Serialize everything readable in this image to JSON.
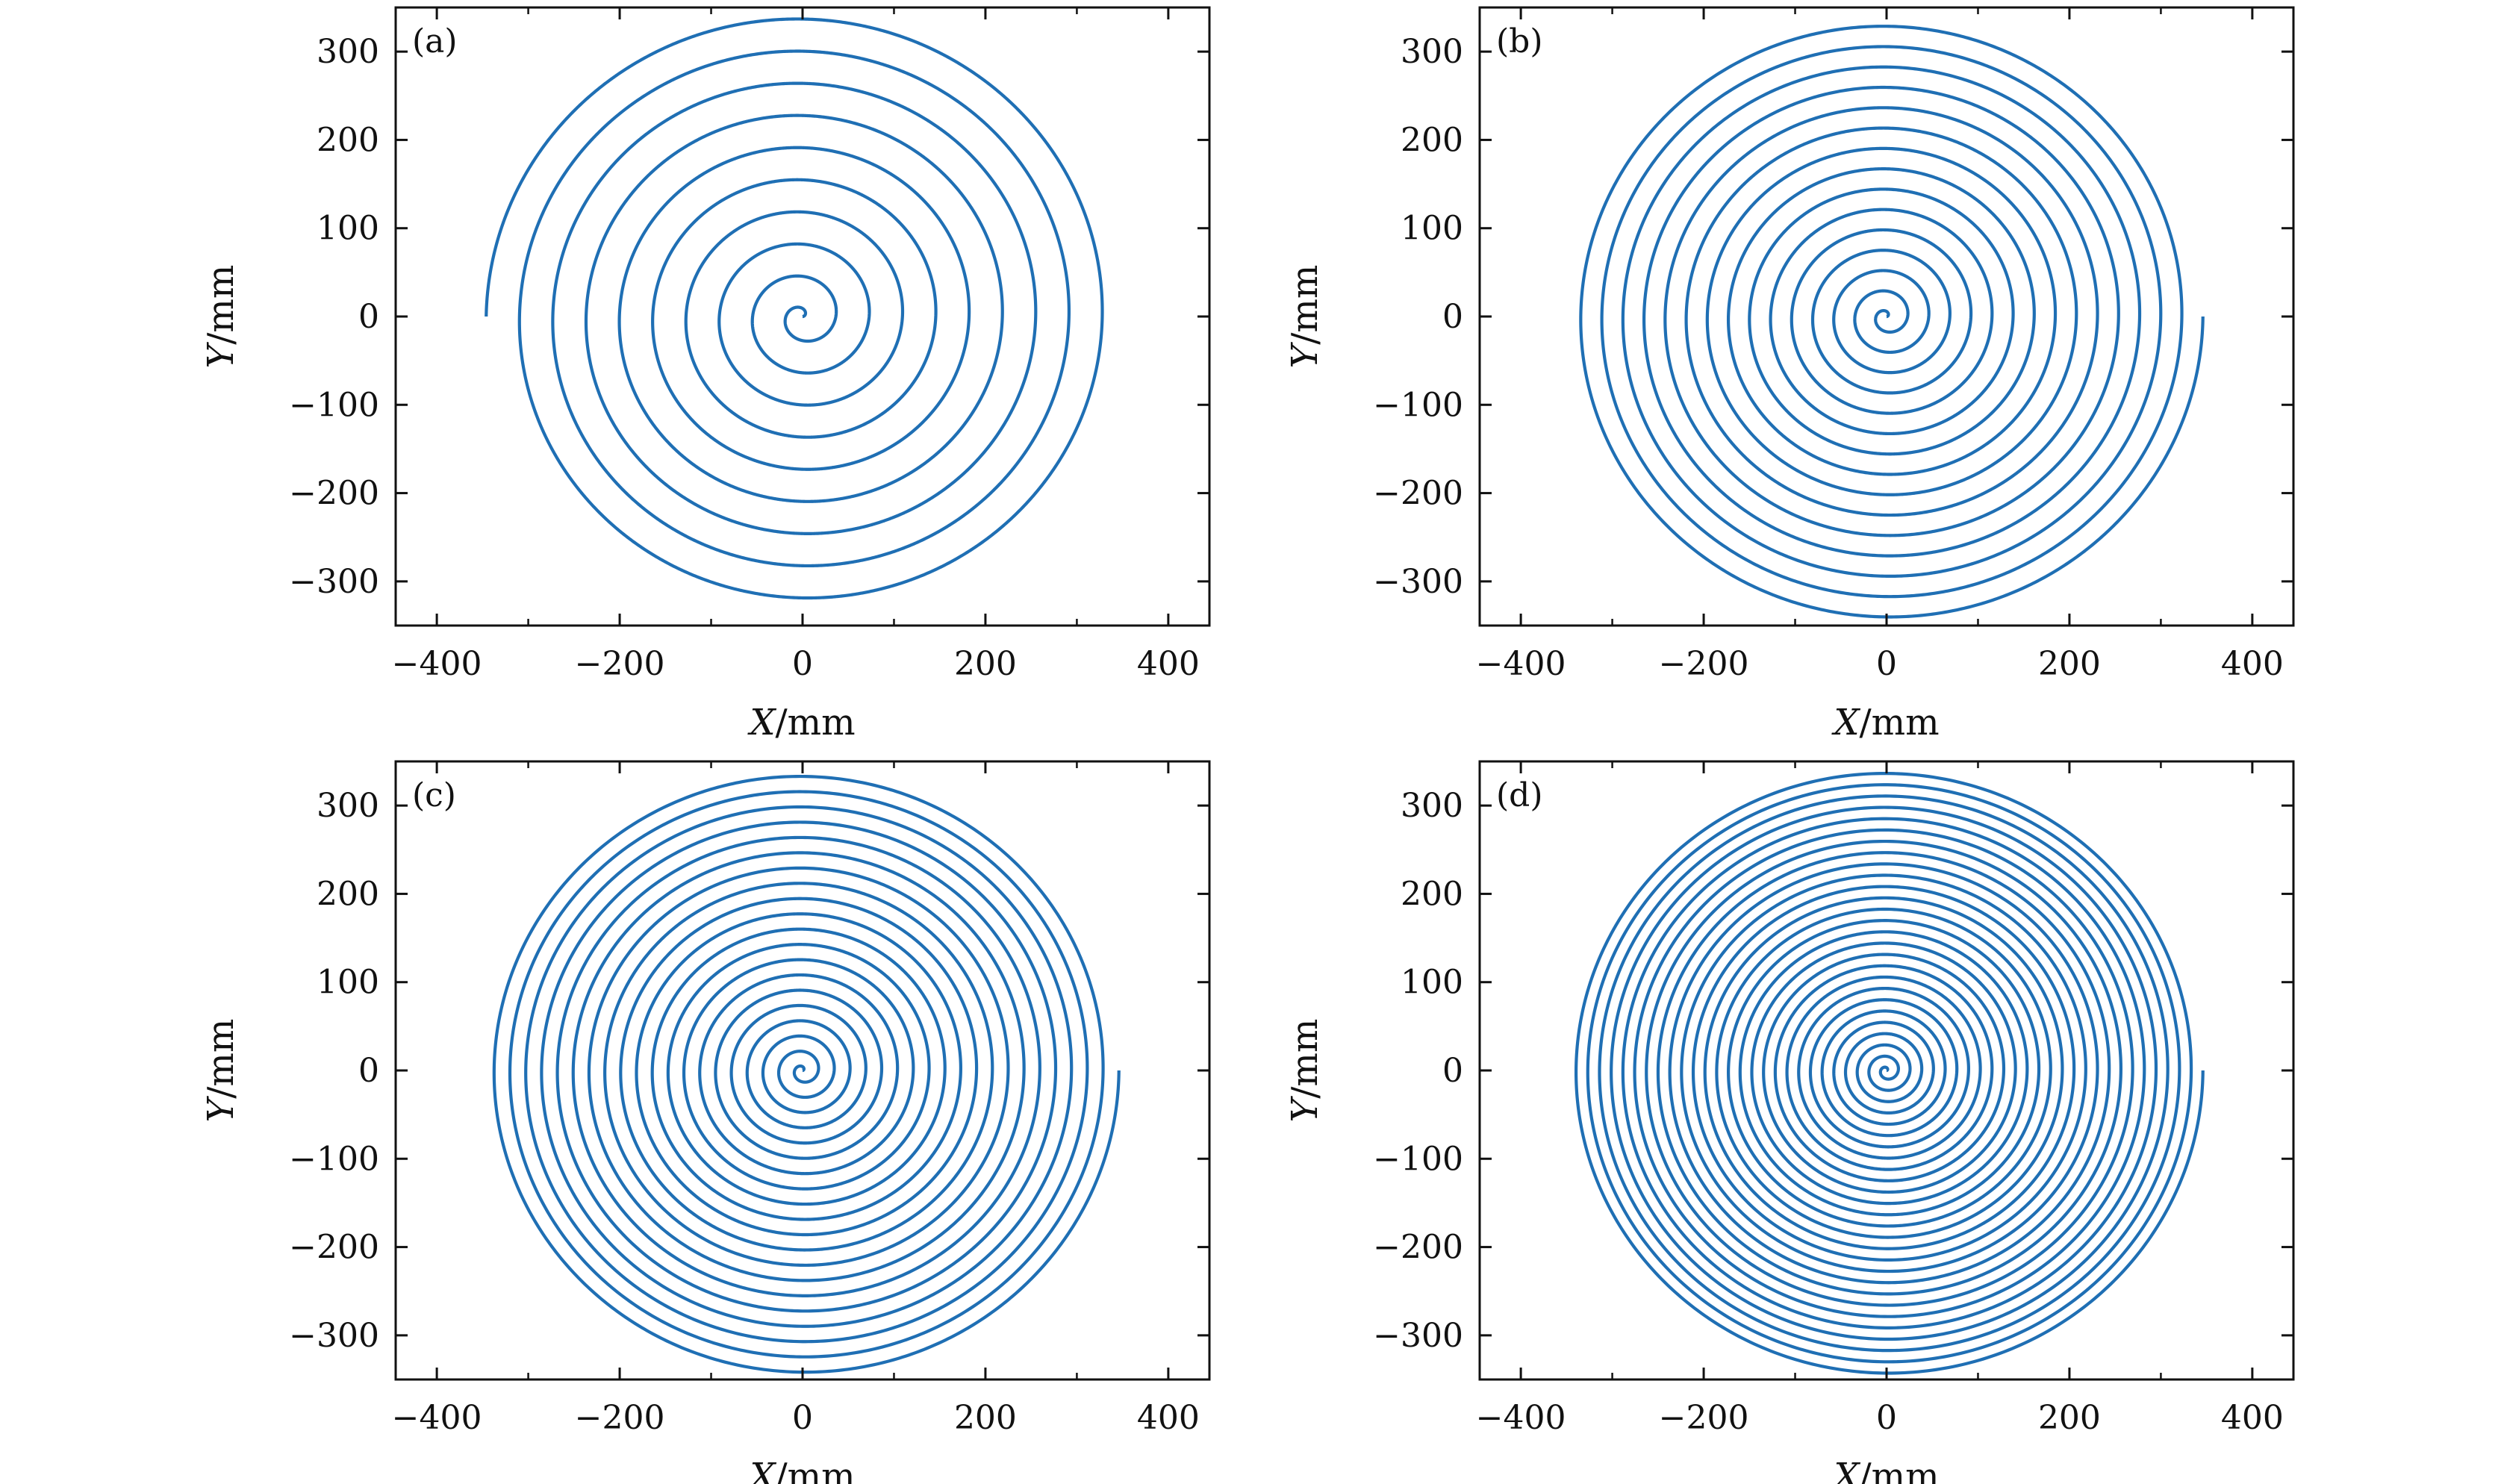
{
  "chart_data": [
    {
      "type": "line",
      "panel_label": "(a)",
      "xlabel_var": "X",
      "ylabel_var": "Y",
      "unit": "/mm",
      "xlim": [
        -445,
        445
      ],
      "ylim": [
        -350,
        350
      ],
      "xticks": [
        -400,
        -200,
        0,
        200,
        400
      ],
      "yticks": [
        -300,
        -200,
        -100,
        0,
        100,
        200,
        300
      ],
      "xtick_labels": [
        "−400",
        "−200",
        "0",
        "200",
        "400"
      ],
      "ytick_labels": [
        "−300",
        "−200",
        "−100",
        "0",
        "100",
        "200",
        "300"
      ],
      "series": [
        {
          "shape": "spiral",
          "color": "#1f6fb4",
          "center": [
            0,
            0
          ],
          "r_min": 0,
          "r_max": 346,
          "turns": 9.5
        }
      ]
    },
    {
      "type": "line",
      "panel_label": "(b)",
      "xlabel_var": "X",
      "ylabel_var": "Y",
      "unit": "/mm",
      "xlim": [
        -445,
        445
      ],
      "ylim": [
        -350,
        350
      ],
      "xticks": [
        -400,
        -200,
        0,
        200,
        400
      ],
      "yticks": [
        -300,
        -200,
        -100,
        0,
        100,
        200,
        300
      ],
      "xtick_labels": [
        "−400",
        "−200",
        "0",
        "200",
        "400"
      ],
      "ytick_labels": [
        "−300",
        "−200",
        "−100",
        "0",
        "100",
        "200",
        "300"
      ],
      "series": [
        {
          "shape": "spiral",
          "color": "#1f6fb4",
          "center": [
            0,
            0
          ],
          "r_min": 0,
          "r_max": 346,
          "turns": 15
        }
      ]
    },
    {
      "type": "line",
      "panel_label": "(c)",
      "xlabel_var": "X",
      "ylabel_var": "Y",
      "unit": "/mm",
      "xlim": [
        -445,
        445
      ],
      "ylim": [
        -350,
        350
      ],
      "xticks": [
        -400,
        -200,
        0,
        200,
        400
      ],
      "yticks": [
        -300,
        -200,
        -100,
        0,
        100,
        200,
        300
      ],
      "xtick_labels": [
        "−400",
        "−200",
        "0",
        "200",
        "400"
      ],
      "ytick_labels": [
        "−300",
        "−200",
        "−100",
        "0",
        "100",
        "200",
        "300"
      ],
      "series": [
        {
          "shape": "spiral",
          "color": "#1f6fb4",
          "center": [
            0,
            0
          ],
          "r_min": 0,
          "r_max": 346,
          "turns": 20
        }
      ]
    },
    {
      "type": "line",
      "panel_label": "(d)",
      "xlabel_var": "X",
      "ylabel_var": "Y",
      "unit": "/mm",
      "xlim": [
        -445,
        445
      ],
      "ylim": [
        -350,
        350
      ],
      "xticks": [
        -400,
        -200,
        0,
        200,
        400
      ],
      "yticks": [
        -300,
        -200,
        -100,
        0,
        100,
        200,
        300
      ],
      "xtick_labels": [
        "−400",
        "−200",
        "0",
        "200",
        "400"
      ],
      "ytick_labels": [
        "−300",
        "−200",
        "−100",
        "0",
        "100",
        "200",
        "300"
      ],
      "series": [
        {
          "shape": "spiral",
          "color": "#1f6fb4",
          "center": [
            0,
            0
          ],
          "r_min": 0,
          "r_max": 346,
          "turns": 27
        }
      ]
    }
  ]
}
